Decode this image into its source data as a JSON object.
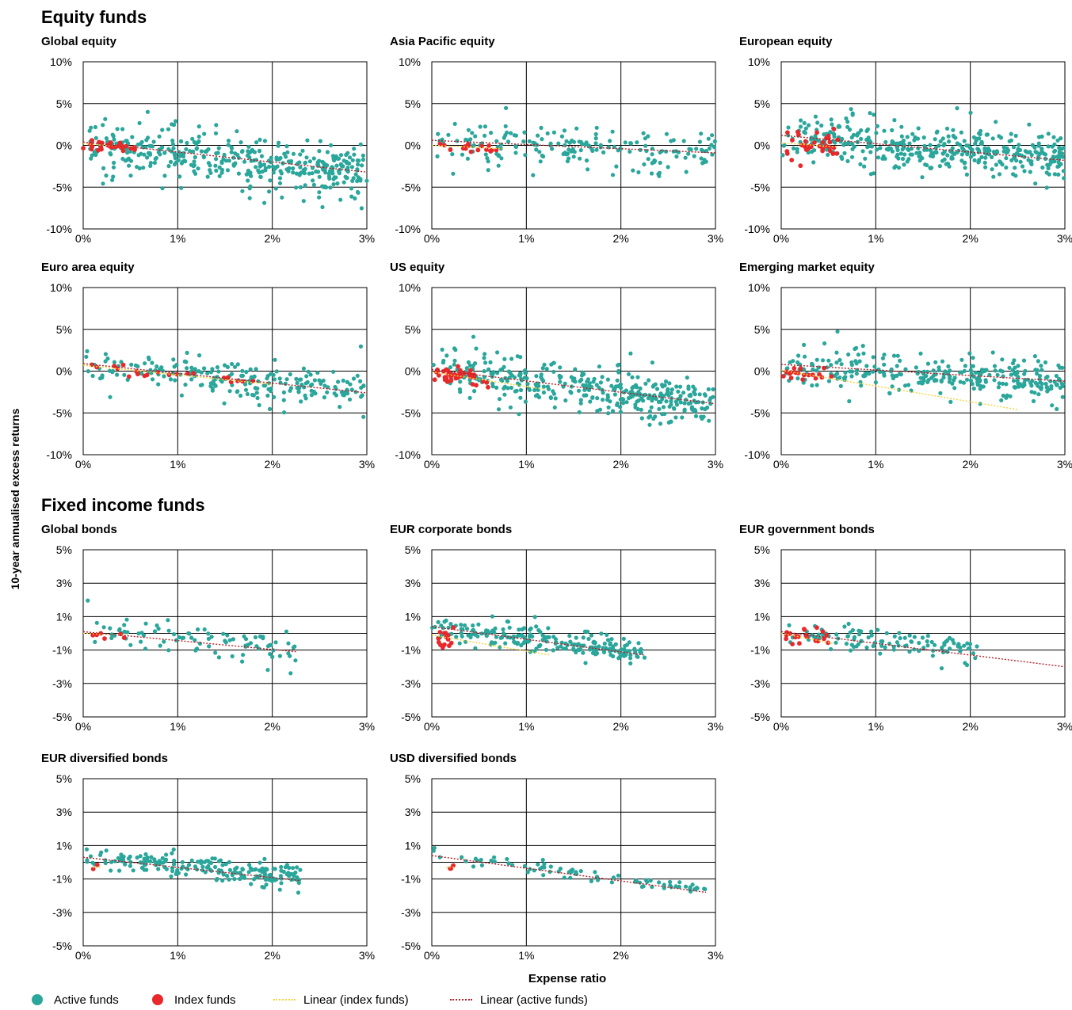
{
  "sections": {
    "equity_title": "Equity funds",
    "fixed_income_title": "Fixed income funds"
  },
  "axes": {
    "y_title": "10-year annualised excess returns",
    "x_title": "Expense ratio"
  },
  "legend": {
    "active_label": "Active funds",
    "index_label": "Index funds",
    "linear_index_label": "Linear (index funds)",
    "linear_active_label": "Linear (active funds)"
  },
  "colors": {
    "active": "#2aa69b",
    "index": "#e8282b",
    "linear_index": "#f2d43a",
    "linear_active": "#b3202a"
  },
  "chart_data": [
    {
      "type": "scatter",
      "title": "Global equity",
      "xlabel": "Expense ratio",
      "ylabel": "10-year annualised excess returns",
      "xlim": [
        0,
        3
      ],
      "ylim": [
        -10,
        10
      ],
      "xticks": [
        "0%",
        "1%",
        "2%",
        "3%"
      ],
      "yticks": [
        "-10%",
        "-5%",
        "0%",
        "5%",
        "10%"
      ],
      "grid": true,
      "legend": "bottom",
      "active": {
        "count": 420,
        "x_range": [
          0,
          3
        ],
        "trend_start": 0.2,
        "trend_slope": -1.2,
        "spread": 2.2
      },
      "index": {
        "count": 28,
        "x_range": [
          0,
          0.55
        ],
        "trend_start": 0.1,
        "trend_slope": -0.8,
        "spread": 0.4
      },
      "linear_active": [
        [
          0,
          0.4
        ],
        [
          3,
          -3.2
        ]
      ],
      "linear_index": [
        [
          0,
          0.2
        ],
        [
          0.55,
          -0.2
        ]
      ]
    },
    {
      "type": "scatter",
      "title": "Asia Pacific equity",
      "xlabel": "Expense ratio",
      "ylabel": "10-year annualised excess returns",
      "xlim": [
        0,
        3
      ],
      "ylim": [
        -10,
        10
      ],
      "xticks": [
        "0%",
        "1%",
        "2%",
        "3%"
      ],
      "yticks": [
        "-10%",
        "-5%",
        "0%",
        "5%",
        "10%"
      ],
      "grid": true,
      "legend": "bottom",
      "active": {
        "count": 190,
        "x_range": [
          0,
          3
        ],
        "trend_start": 0.3,
        "trend_slope": -0.4,
        "spread": 1.9
      },
      "index": {
        "count": 16,
        "x_range": [
          0.05,
          0.75
        ],
        "trend_start": 0.0,
        "trend_slope": -0.6,
        "spread": 0.35
      },
      "linear_active": [
        [
          0,
          0.6
        ],
        [
          3,
          -0.9
        ]
      ],
      "linear_index": [
        [
          0,
          0.0
        ],
        [
          0.75,
          -0.4
        ]
      ]
    },
    {
      "type": "scatter",
      "title": "European equity",
      "xlabel": "Expense ratio",
      "ylabel": "10-year annualised excess returns",
      "xlim": [
        0,
        3
      ],
      "ylim": [
        -10,
        10
      ],
      "xticks": [
        "0%",
        "1%",
        "2%",
        "3%"
      ],
      "yticks": [
        "-10%",
        "-5%",
        "0%",
        "5%",
        "10%"
      ],
      "grid": true,
      "legend": "bottom",
      "active": {
        "count": 420,
        "x_range": [
          0,
          3
        ],
        "trend_start": 0.8,
        "trend_slope": -0.8,
        "spread": 1.8
      },
      "index": {
        "count": 35,
        "x_range": [
          0.05,
          0.6
        ],
        "trend_start": 0.2,
        "trend_slope": -0.7,
        "spread": 0.8
      },
      "linear_active": [
        [
          0,
          1.2
        ],
        [
          3,
          -1.8
        ]
      ],
      "linear_index": [
        [
          0,
          0.3
        ],
        [
          0.6,
          -0.2
        ]
      ]
    },
    {
      "type": "scatter",
      "title": "Euro area equity",
      "xlabel": "Expense ratio",
      "ylabel": "10-year annualised excess returns",
      "xlim": [
        0,
        3
      ],
      "ylim": [
        -10,
        10
      ],
      "xticks": [
        "0%",
        "1%",
        "2%",
        "3%"
      ],
      "yticks": [
        "-10%",
        "-5%",
        "0%",
        "5%",
        "10%"
      ],
      "grid": true,
      "legend": "bottom",
      "active": {
        "count": 220,
        "x_range": [
          0,
          3
        ],
        "trend_start": 0.8,
        "trend_slope": -1.1,
        "spread": 1.6
      },
      "index": {
        "count": 22,
        "x_range": [
          0.05,
          1.9
        ],
        "trend_start": 0.6,
        "trend_slope": -1.0,
        "spread": 0.5
      },
      "linear_active": [
        [
          0,
          0.9
        ],
        [
          3,
          -2.6
        ]
      ],
      "linear_index": [
        [
          0,
          0.7
        ],
        [
          2.0,
          -1.6
        ]
      ]
    },
    {
      "type": "scatter",
      "title": "US equity",
      "xlabel": "Expense ratio",
      "ylabel": "10-year annualised excess returns",
      "xlim": [
        0,
        3
      ],
      "ylim": [
        -10,
        10
      ],
      "xticks": [
        "0%",
        "1%",
        "2%",
        "3%"
      ],
      "yticks": [
        "-10%",
        "-5%",
        "0%",
        "5%",
        "10%"
      ],
      "grid": true,
      "legend": "bottom",
      "active": {
        "count": 380,
        "x_range": [
          0,
          3
        ],
        "trend_start": 0.0,
        "trend_slope": -1.3,
        "spread": 1.9
      },
      "index": {
        "count": 40,
        "x_range": [
          0.02,
          0.6
        ],
        "trend_start": 0.0,
        "trend_slope": -2.0,
        "spread": 0.5
      },
      "linear_active": [
        [
          0,
          0.2
        ],
        [
          3,
          -3.9
        ]
      ],
      "linear_index": [
        [
          0,
          -0.1
        ],
        [
          1.2,
          -2.2
        ]
      ]
    },
    {
      "type": "scatter",
      "title": "Emerging market equity",
      "xlabel": "Expense ratio",
      "ylabel": "10-year annualised excess returns",
      "xlim": [
        0,
        3
      ],
      "ylim": [
        -10,
        10
      ],
      "xticks": [
        "0%",
        "1%",
        "2%",
        "3%"
      ],
      "yticks": [
        "-10%",
        "-5%",
        "0%",
        "5%",
        "10%"
      ],
      "grid": true,
      "legend": "bottom",
      "active": {
        "count": 300,
        "x_range": [
          0,
          3
        ],
        "trend_start": 0.8,
        "trend_slope": -0.7,
        "spread": 1.6
      },
      "index": {
        "count": 18,
        "x_range": [
          0.02,
          0.55
        ],
        "trend_start": -0.1,
        "trend_slope": -0.8,
        "spread": 0.3
      },
      "linear_active": [
        [
          0,
          0.8
        ],
        [
          3,
          -1.2
        ]
      ],
      "linear_index": [
        [
          0,
          0.1
        ],
        [
          2.5,
          -4.6
        ]
      ]
    },
    {
      "type": "scatter",
      "title": "Global bonds",
      "xlabel": "Expense ratio",
      "ylabel": "10-year annualised excess returns",
      "xlim": [
        0,
        3
      ],
      "ylim": [
        -5,
        5
      ],
      "xticks": [
        "0%",
        "1%",
        "2%",
        "3%"
      ],
      "yticks": [
        "-5%",
        "-3%",
        "-1%",
        "1%",
        "3%",
        "5%"
      ],
      "grid": true,
      "legend": "bottom",
      "active": {
        "count": 90,
        "x_range": [
          0,
          2.25
        ],
        "trend_start": 0.3,
        "trend_slope": -0.5,
        "spread": 0.6
      },
      "index": {
        "count": 6,
        "x_range": [
          0.02,
          0.45
        ],
        "trend_start": 0.0,
        "trend_slope": -0.3,
        "spread": 0.15
      },
      "linear_active": [
        [
          0,
          0.1
        ],
        [
          2.25,
          -1.1
        ]
      ],
      "linear_index": [
        [
          0,
          0.0
        ],
        [
          0.45,
          -0.1
        ]
      ]
    },
    {
      "type": "scatter",
      "title": "EUR corporate bonds",
      "xlabel": "Expense ratio",
      "ylabel": "10-year annualised excess returns",
      "xlim": [
        0,
        3
      ],
      "ylim": [
        -5,
        5
      ],
      "xticks": [
        "0%",
        "1%",
        "2%",
        "3%"
      ],
      "yticks": [
        "-5%",
        "-3%",
        "-1%",
        "1%",
        "3%",
        "5%"
      ],
      "grid": true,
      "legend": "bottom",
      "active": {
        "count": 220,
        "x_range": [
          0,
          2.25
        ],
        "trend_start": 0.4,
        "trend_slope": -0.7,
        "spread": 0.5
      },
      "index": {
        "count": 14,
        "x_range": [
          0.05,
          0.25
        ],
        "trend_start": -0.3,
        "trend_slope": -0.5,
        "spread": 0.3
      },
      "linear_active": [
        [
          0,
          0.4
        ],
        [
          2.25,
          -1.3
        ]
      ],
      "linear_index": [
        [
          0,
          -0.1
        ],
        [
          1.25,
          -1.3
        ]
      ]
    },
    {
      "type": "scatter",
      "title": "EUR government bonds",
      "xlabel": "Expense ratio",
      "ylabel": "10-year annualised excess returns",
      "xlim": [
        0,
        3
      ],
      "ylim": [
        -5,
        5
      ],
      "xticks": [
        "0%",
        "1%",
        "2%",
        "3%"
      ],
      "yticks": [
        "-5%",
        "-3%",
        "-1%",
        "1%",
        "3%",
        "5%"
      ],
      "grid": true,
      "legend": "bottom",
      "active": {
        "count": 110,
        "x_range": [
          0,
          2.1
        ],
        "trend_start": 0.2,
        "trend_slope": -0.6,
        "spread": 0.5
      },
      "index": {
        "count": 22,
        "x_range": [
          0.02,
          0.55
        ],
        "trend_start": 0.0,
        "trend_slope": -0.8,
        "spread": 0.35
      },
      "linear_active": [
        [
          0,
          0.1
        ],
        [
          3,
          -2.0
        ]
      ],
      "linear_index": [
        [
          0,
          0.0
        ],
        [
          0.55,
          -0.6
        ]
      ]
    },
    {
      "type": "scatter",
      "title": "EUR diversified bonds",
      "xlabel": "Expense ratio",
      "ylabel": "10-year annualised excess returns",
      "xlim": [
        0,
        3
      ],
      "ylim": [
        -5,
        5
      ],
      "xticks": [
        "0%",
        "1%",
        "2%",
        "3%"
      ],
      "yticks": [
        "-5%",
        "-3%",
        "-1%",
        "1%",
        "3%",
        "5%"
      ],
      "grid": true,
      "legend": "bottom",
      "active": {
        "count": 200,
        "x_range": [
          0,
          2.3
        ],
        "trend_start": 0.3,
        "trend_slope": -0.5,
        "spread": 0.5
      },
      "index": {
        "count": 2,
        "x_range": [
          0.1,
          0.2
        ],
        "trend_start": -0.3,
        "trend_slope": 0,
        "spread": 0.1
      },
      "linear_active": [
        [
          0,
          0.3
        ],
        [
          2.3,
          -1.1
        ]
      ],
      "linear_index": [
        [
          0.1,
          -0.3
        ],
        [
          0.2,
          -0.3
        ]
      ]
    },
    {
      "type": "scatter",
      "title": "USD diversified bonds",
      "xlabel": "Expense ratio",
      "ylabel": "10-year annualised excess returns",
      "xlim": [
        0,
        3
      ],
      "ylim": [
        -5,
        5
      ],
      "xticks": [
        "0%",
        "1%",
        "2%",
        "3%"
      ],
      "yticks": [
        "-5%",
        "-3%",
        "-1%",
        "1%",
        "3%",
        "5%"
      ],
      "grid": true,
      "legend": "bottom",
      "active": {
        "count": 80,
        "x_range": [
          0,
          2.9
        ],
        "trend_start": 0.4,
        "trend_slope": -0.7,
        "spread": 0.25
      },
      "index": {
        "count": 3,
        "x_range": [
          0.15,
          0.25
        ],
        "trend_start": -0.3,
        "trend_slope": 0,
        "spread": 0.05
      },
      "linear_active": [
        [
          0,
          0.4
        ],
        [
          2.9,
          -1.8
        ]
      ],
      "linear_index": [
        [
          0.15,
          -0.3
        ],
        [
          0.25,
          -0.3
        ]
      ]
    }
  ]
}
